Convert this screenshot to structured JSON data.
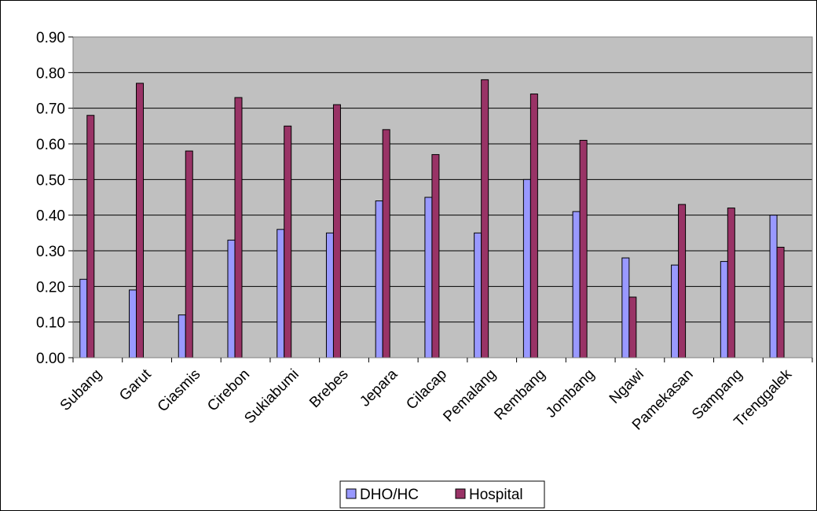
{
  "chart_data": {
    "type": "bar",
    "categories": [
      "Subang",
      "Garut",
      "Ciasmis",
      "Cirebon",
      "Sukiabumi",
      "Brebes",
      "Jepara",
      "Cilacap",
      "Pemalang",
      "Rembang",
      "Jombang",
      "Ngawi",
      "Pamekasan",
      "Sampang",
      "Trenggalek"
    ],
    "series": [
      {
        "name": "DHO/HC",
        "color": "#9999ff",
        "values": [
          0.22,
          0.19,
          0.12,
          0.33,
          0.36,
          0.35,
          0.44,
          0.45,
          0.35,
          0.5,
          0.41,
          0.28,
          0.26,
          0.27,
          0.4
        ]
      },
      {
        "name": "Hospital",
        "color": "#993366",
        "values": [
          0.68,
          0.77,
          0.58,
          0.73,
          0.65,
          0.71,
          0.64,
          0.57,
          0.78,
          0.74,
          0.61,
          0.17,
          0.43,
          0.42,
          0.31
        ]
      }
    ],
    "y_ticks": [
      "0.00",
      "0.10",
      "0.20",
      "0.30",
      "0.40",
      "0.50",
      "0.60",
      "0.70",
      "0.80",
      "0.90"
    ],
    "ylim": [
      0,
      0.9
    ],
    "grid": true,
    "plot_background": "#c0c0c0",
    "legend_position": "bottom",
    "title": "",
    "xlabel": "",
    "ylabel": ""
  }
}
